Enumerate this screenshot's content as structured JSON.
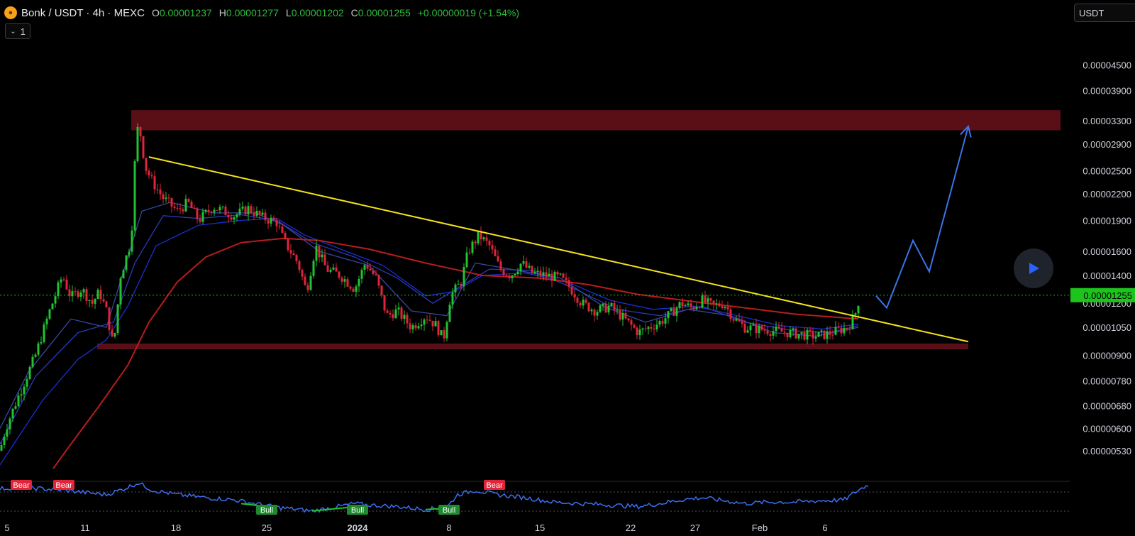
{
  "header": {
    "symbol": "Bonk / USDT · 4h · MEXC",
    "open_label": "O",
    "open": "0.00001237",
    "high_label": "H",
    "high": "0.00001277",
    "low_label": "L",
    "low": "0.00001202",
    "close_label": "C",
    "close": "0.00001255",
    "change": "+0.00000019 (+1.54%)",
    "indicator_count": "1"
  },
  "currency": "USDT",
  "colors": {
    "bull": "#22c232",
    "bear": "#e0253a",
    "trendline": "#f4e21c",
    "zone": "#5a0f17",
    "ema_long": "#b91c1c",
    "ema_short": "#1e3ad6",
    "projection": "#3b74e8",
    "rsi": "#3d6ef0",
    "price_tag": "#1ec41e"
  },
  "chart_data": {
    "type": "candlestick",
    "x_ticks": [
      "5",
      "11",
      "18",
      "25",
      "2024",
      "8",
      "15",
      "22",
      "27",
      "Feb",
      "6"
    ],
    "y_ticks": [
      "0.00004500",
      "0.00003900",
      "0.00003300",
      "0.00002900",
      "0.00002500",
      "0.00002200",
      "0.00001900",
      "0.00001600",
      "0.00001400",
      "0.00001200",
      "0.00001050",
      "0.00000900",
      "0.00000780",
      "0.00000680",
      "0.00000600",
      "0.00000530"
    ],
    "y_scale": "log",
    "ylim": [
      4.8e-06,
      5.05e-05
    ],
    "last_price": "0.00001255",
    "price_path": [
      [
        0,
        5.3e-06
      ],
      [
        8,
        6e-06
      ],
      [
        25,
        7.1e-06
      ],
      [
        50,
        9e-06
      ],
      [
        70,
        1.15e-05
      ],
      [
        88,
        1.4e-05
      ],
      [
        100,
        1.24e-05
      ],
      [
        115,
        1.3e-05
      ],
      [
        130,
        1.2e-05
      ],
      [
        140,
        1.28e-05
      ],
      [
        150,
        1.15e-05
      ],
      [
        160,
        9.4e-06
      ],
      [
        170,
        1.4e-05
      ],
      [
        185,
        1.7e-05
      ],
      [
        190,
        2.6e-05
      ],
      [
        195,
        3.3e-05
      ],
      [
        205,
        2.55e-05
      ],
      [
        215,
        2.35e-05
      ],
      [
        230,
        2.15e-05
      ],
      [
        250,
        2e-05
      ],
      [
        265,
        2.1e-05
      ],
      [
        280,
        1.9e-05
      ],
      [
        300,
        2.05e-05
      ],
      [
        315,
        2e-05
      ],
      [
        330,
        1.95e-05
      ],
      [
        350,
        2.03e-05
      ],
      [
        370,
        1.93e-05
      ],
      [
        390,
        1.88e-05
      ],
      [
        400,
        1.7e-05
      ],
      [
        420,
        1.5e-05
      ],
      [
        432,
        1.28e-05
      ],
      [
        445,
        1.65e-05
      ],
      [
        460,
        1.45e-05
      ],
      [
        480,
        1.4e-05
      ],
      [
        500,
        1.3e-05
      ],
      [
        515,
        1.5e-05
      ],
      [
        530,
        1.38e-05
      ],
      [
        545,
        1.12e-05
      ],
      [
        560,
        1.15e-05
      ],
      [
        580,
        1.05e-05
      ],
      [
        600,
        1.12e-05
      ],
      [
        615,
        1.06e-05
      ],
      [
        625,
        9.8e-06
      ],
      [
        635,
        1.25e-05
      ],
      [
        650,
        1.35e-05
      ],
      [
        660,
        1.6e-05
      ],
      [
        675,
        1.75e-05
      ],
      [
        690,
        1.65e-05
      ],
      [
        705,
        1.45e-05
      ],
      [
        720,
        1.4e-05
      ],
      [
        735,
        1.5e-05
      ],
      [
        750,
        1.42e-05
      ],
      [
        770,
        1.4e-05
      ],
      [
        790,
        1.38e-05
      ],
      [
        805,
        1.3e-05
      ],
      [
        820,
        1.2e-05
      ],
      [
        840,
        1.15e-05
      ],
      [
        860,
        1.18e-05
      ],
      [
        880,
        1.1e-05
      ],
      [
        900,
        1.02e-05
      ],
      [
        915,
        1.05e-05
      ],
      [
        930,
        1.08e-05
      ],
      [
        945,
        1.13e-05
      ],
      [
        960,
        1.2e-05
      ],
      [
        975,
        1.17e-05
      ],
      [
        990,
        1.22e-05
      ],
      [
        1005,
        1.18e-05
      ],
      [
        1020,
        1.2e-05
      ],
      [
        1035,
        1.1e-05
      ],
      [
        1050,
        1.05e-05
      ],
      [
        1070,
        1.04e-05
      ],
      [
        1090,
        1.03e-05
      ],
      [
        1110,
        1.02e-05
      ],
      [
        1130,
        1.01e-05
      ],
      [
        1150,
        1e-05
      ],
      [
        1165,
        1.01e-05
      ],
      [
        1180,
        1.03e-05
      ],
      [
        1195,
        1.05e-05
      ],
      [
        1205,
        1.12e-05
      ],
      [
        1212,
        1.25e-05
      ]
    ],
    "ema_long_path": [
      [
        75,
        4.8e-06
      ],
      [
        100,
        5.5e-06
      ],
      [
        140,
        6.8e-06
      ],
      [
        180,
        8.5e-06
      ],
      [
        210,
        1.08e-05
      ],
      [
        250,
        1.35e-05
      ],
      [
        290,
        1.55e-05
      ],
      [
        340,
        1.68e-05
      ],
      [
        400,
        1.72e-05
      ],
      [
        450,
        1.7e-05
      ],
      [
        520,
        1.62e-05
      ],
      [
        600,
        1.5e-05
      ],
      [
        680,
        1.4e-05
      ],
      [
        760,
        1.38e-05
      ],
      [
        830,
        1.33e-05
      ],
      [
        900,
        1.26e-05
      ],
      [
        980,
        1.21e-05
      ],
      [
        1050,
        1.17e-05
      ],
      [
        1120,
        1.13e-05
      ],
      [
        1210,
        1.1e-05
      ]
    ],
    "ema_short_paths": [
      [
        [
          0,
          4.9e-06
        ],
        [
          60,
          7e-06
        ],
        [
          110,
          8.8e-06
        ],
        [
          150,
          9.8e-06
        ],
        [
          180,
          1.18e-05
        ],
        [
          220,
          1.65e-05
        ],
        [
          280,
          1.85e-05
        ],
        [
          340,
          1.9e-05
        ],
        [
          390,
          1.92e-05
        ],
        [
          430,
          1.75e-05
        ],
        [
          480,
          1.62e-05
        ],
        [
          540,
          1.48e-05
        ],
        [
          600,
          1.25e-05
        ],
        [
          640,
          1.28e-05
        ],
        [
          680,
          1.4e-05
        ],
        [
          740,
          1.42e-05
        ],
        [
          800,
          1.35e-05
        ],
        [
          860,
          1.22e-05
        ],
        [
          920,
          1.16e-05
        ],
        [
          980,
          1.18e-05
        ],
        [
          1040,
          1.12e-05
        ],
        [
          1100,
          1.06e-05
        ],
        [
          1160,
          1.04e-05
        ],
        [
          1210,
          1.07e-05
        ]
      ],
      [
        [
          0,
          5.5e-06
        ],
        [
          50,
          8e-06
        ],
        [
          110,
          1.02e-05
        ],
        [
          160,
          1.08e-05
        ],
        [
          190,
          1.5e-05
        ],
        [
          230,
          1.95e-05
        ],
        [
          280,
          1.92e-05
        ],
        [
          340,
          1.96e-05
        ],
        [
          390,
          1.9e-05
        ],
        [
          440,
          1.68e-05
        ],
        [
          500,
          1.55e-05
        ],
        [
          560,
          1.38e-05
        ],
        [
          610,
          1.2e-05
        ],
        [
          650,
          1.32e-05
        ],
        [
          690,
          1.45e-05
        ],
        [
          750,
          1.44e-05
        ],
        [
          810,
          1.3e-05
        ],
        [
          870,
          1.16e-05
        ],
        [
          930,
          1.12e-05
        ],
        [
          990,
          1.18e-05
        ],
        [
          1050,
          1.08e-05
        ],
        [
          1120,
          1.03e-05
        ],
        [
          1170,
          1.02e-05
        ],
        [
          1210,
          1.06e-05
        ]
      ],
      [
        [
          0,
          6e-06
        ],
        [
          40,
          8.2e-06
        ],
        [
          100,
          1.1e-05
        ],
        [
          150,
          1.05e-05
        ],
        [
          200,
          2e-05
        ],
        [
          240,
          2.1e-05
        ],
        [
          300,
          1.98e-05
        ],
        [
          360,
          1.98e-05
        ],
        [
          400,
          1.85e-05
        ],
        [
          450,
          1.6e-05
        ],
        [
          520,
          1.48e-05
        ],
        [
          580,
          1.15e-05
        ],
        [
          630,
          1.12e-05
        ],
        [
          670,
          1.5e-05
        ],
        [
          720,
          1.45e-05
        ],
        [
          790,
          1.38e-05
        ],
        [
          850,
          1.18e-05
        ],
        [
          910,
          1.08e-05
        ],
        [
          970,
          1.16e-05
        ],
        [
          1030,
          1.12e-05
        ],
        [
          1090,
          1.02e-05
        ],
        [
          1150,
          1e-05
        ],
        [
          1210,
          1.05e-05
        ]
      ]
    ],
    "trendline": [
      [
        210,
        2.7e-05
      ],
      [
        1365,
        9.7e-06
      ]
    ],
    "resistance_zone": [
      3.13e-05,
      3.5e-05
    ],
    "support_zone": [
      9.3e-06,
      9.6e-06
    ],
    "projection_path": [
      [
        1235,
        1.25e-05
      ],
      [
        1250,
        1.17e-05
      ],
      [
        1287,
        1.7e-05
      ],
      [
        1310,
        1.43e-05
      ],
      [
        1365,
        3.2e-05
      ]
    ],
    "rsi_labels": [
      {
        "text": "Bear",
        "kind": "bear",
        "x": 30
      },
      {
        "text": "Bear",
        "kind": "bear",
        "x": 90
      },
      {
        "text": "Bull",
        "kind": "bull",
        "x": 376
      },
      {
        "text": "Bull",
        "kind": "bull",
        "x": 504
      },
      {
        "text": "Bull",
        "kind": "bull",
        "x": 633
      },
      {
        "text": "Bear",
        "kind": "bear",
        "x": 697
      }
    ],
    "rsi_series": [
      [
        0,
        60
      ],
      [
        30,
        62
      ],
      [
        60,
        60
      ],
      [
        90,
        58
      ],
      [
        120,
        55
      ],
      [
        150,
        52
      ],
      [
        175,
        60
      ],
      [
        195,
        68
      ],
      [
        215,
        58
      ],
      [
        250,
        52
      ],
      [
        290,
        48
      ],
      [
        330,
        45
      ],
      [
        360,
        40
      ],
      [
        390,
        35
      ],
      [
        420,
        32
      ],
      [
        440,
        30
      ],
      [
        470,
        35
      ],
      [
        500,
        40
      ],
      [
        520,
        38
      ],
      [
        560,
        36
      ],
      [
        600,
        32
      ],
      [
        630,
        35
      ],
      [
        645,
        52
      ],
      [
        670,
        58
      ],
      [
        700,
        52
      ],
      [
        740,
        48
      ],
      [
        780,
        42
      ],
      [
        820,
        40
      ],
      [
        860,
        38
      ],
      [
        900,
        36
      ],
      [
        930,
        40
      ],
      [
        960,
        45
      ],
      [
        990,
        48
      ],
      [
        1020,
        44
      ],
      [
        1050,
        40
      ],
      [
        1080,
        42
      ],
      [
        1120,
        42
      ],
      [
        1160,
        44
      ],
      [
        1190,
        45
      ],
      [
        1210,
        58
      ],
      [
        1225,
        66
      ]
    ]
  }
}
